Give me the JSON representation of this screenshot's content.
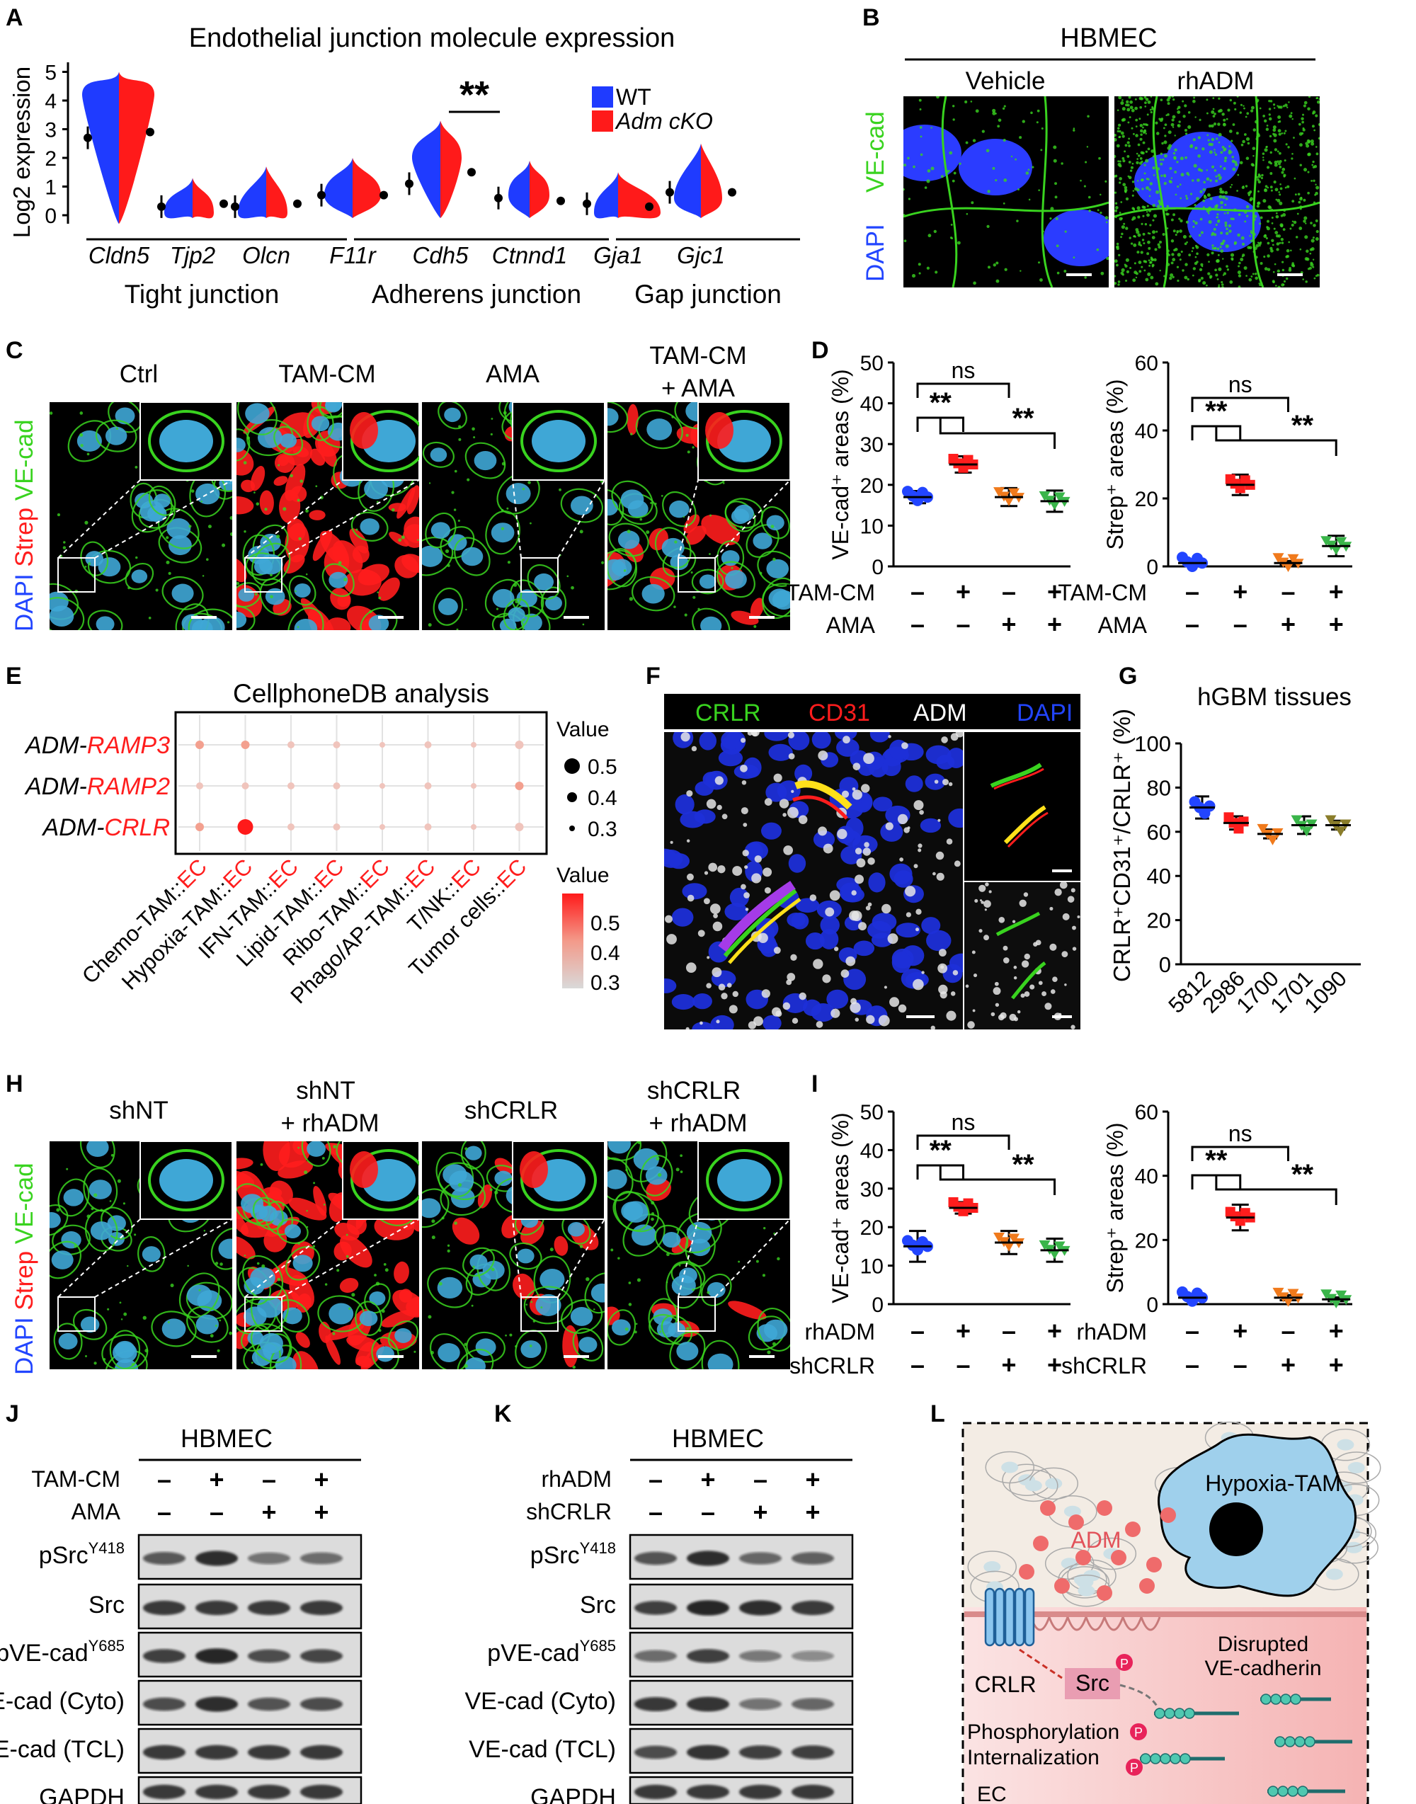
{
  "colors": {
    "wt": "#1f3bff",
    "cko": "#ff1a1a",
    "green": "#39d31f",
    "red": "#ff1d1d",
    "orange": "#f07a1c",
    "lime": "#3ab54a",
    "olive": "#8a7d2a",
    "blue": "#2245ff"
  },
  "A": {
    "letter": "A",
    "title": "Endothelial junction molecule expression",
    "ylabel": "Log2 expression",
    "legend": [
      "WT",
      "Adm cKO"
    ],
    "sig": "**",
    "genes": [
      "Cldn5",
      "Tjp2",
      "Olcn",
      "F11r",
      "Cdh5",
      "Ctnnd1",
      "Gja1",
      "Gjc1"
    ],
    "groups": [
      "Tight junction",
      "Adherens junction",
      "Gap junction"
    ],
    "yticks": [
      "0",
      "1",
      "2",
      "3",
      "4",
      "5"
    ]
  },
  "B": {
    "letter": "B",
    "title": "HBMEC",
    "conditions": [
      "Vehicle",
      "rhADM"
    ],
    "stain_a": "VE-cad",
    "stain_b": "DAPI"
  },
  "C": {
    "letter": "C",
    "conditions": [
      "Ctrl",
      "TAM-CM",
      "AMA",
      "TAM-CM",
      "+ AMA"
    ],
    "stain_a": "DAPI",
    "stain_b": "Strep",
    "stain_c": "VE-cad"
  },
  "D": {
    "letter": "D",
    "ns": "ns",
    "sig": "**",
    "row1": "TAM-CM",
    "row2": "AMA",
    "plus": "+",
    "minus": "–",
    "chart_data": [
      {
        "type": "scatter",
        "ylabel": "VE-cad⁺ areas (%)",
        "yticks": [
          "0",
          "10",
          "20",
          "30",
          "40",
          "50"
        ],
        "ylim": [
          0,
          50
        ],
        "categories": [
          "1",
          "2",
          "3",
          "4"
        ],
        "values": [
          17,
          25,
          17,
          16
        ],
        "errors": [
          1.5,
          2,
          2.2,
          2.6
        ]
      },
      {
        "type": "scatter",
        "ylabel": "Strep⁺ areas (%)",
        "yticks": [
          "0",
          "20",
          "40",
          "60"
        ],
        "ylim": [
          0,
          60
        ],
        "categories": [
          "1",
          "2",
          "3",
          "4"
        ],
        "values": [
          1,
          24,
          1,
          6
        ],
        "errors": [
          0.5,
          3,
          0.6,
          3
        ]
      }
    ]
  },
  "E": {
    "letter": "E",
    "title": "CellphoneDB analysis",
    "rows": [
      "ADM-RAMP3",
      "ADM-RAMP2",
      "ADM-CRLR"
    ],
    "row_prefix": "ADM-",
    "row_suffix": [
      "RAMP3",
      "RAMP2",
      "CRLR"
    ],
    "cols_prefix": [
      "Chemo-TAM::",
      "Hypoxia-TAM::",
      "IFN-TAM::",
      "Lipid-TAM::",
      "Ribo-TAM::",
      "Phago/AP-TAM::",
      "T/NK::",
      "Tumor cells::"
    ],
    "col_suffix": "EC",
    "size_legend_title": "Value",
    "size_legend": [
      "0.5",
      "0.4",
      "0.3"
    ],
    "color_legend_title": "Value",
    "color_legend": [
      "0.5",
      "0.4",
      "0.3"
    ]
  },
  "F": {
    "letter": "F",
    "stains": [
      "CRLR",
      "CD31",
      "ADM",
      "DAPI"
    ]
  },
  "G": {
    "letter": "G",
    "title": "hGBM tissues",
    "chart_data": {
      "type": "scatter",
      "ylabel": "CRLR⁺CD31⁺/CRLR⁺ (%)",
      "categories": [
        "5812",
        "2986",
        "1700",
        "1701",
        "1090"
      ],
      "values": [
        71,
        64,
        59,
        63,
        63
      ],
      "errors": [
        5,
        3,
        2,
        4,
        2
      ],
      "ylim": [
        0,
        100
      ],
      "yticks": [
        "0",
        "20",
        "40",
        "60",
        "80",
        "100"
      ]
    }
  },
  "H": {
    "letter": "H",
    "conditions": [
      "shNT",
      "shNT",
      "+ rhADM",
      "shCRLR",
      "shCRLR",
      "+ rhADM"
    ],
    "stain_a": "DAPI",
    "stain_b": "Strep",
    "stain_c": "VE-cad"
  },
  "I": {
    "letter": "I",
    "ns": "ns",
    "sig": "**",
    "row1": "rhADM",
    "row2": "shCRLR",
    "plus": "+",
    "minus": "–",
    "chart_data": [
      {
        "type": "scatter",
        "ylabel": "VE-cad⁺ areas (%)",
        "yticks": [
          "0",
          "10",
          "20",
          "30",
          "40",
          "50"
        ],
        "ylim": [
          0,
          50
        ],
        "categories": [
          "1",
          "2",
          "3",
          "4"
        ],
        "values": [
          15,
          25,
          16,
          14
        ],
        "errors": [
          4,
          1.5,
          3,
          3
        ]
      },
      {
        "type": "scatter",
        "ylabel": "Strep⁺ areas (%)",
        "yticks": [
          "0",
          "20",
          "40",
          "60"
        ],
        "ylim": [
          0,
          60
        ],
        "categories": [
          "1",
          "2",
          "3",
          "4"
        ],
        "values": [
          2,
          27,
          2,
          1.5
        ],
        "errors": [
          0.6,
          4,
          0.8,
          0.6
        ]
      }
    ]
  },
  "J": {
    "letter": "J",
    "title": "HBMEC",
    "row1": "TAM-CM",
    "row2": "AMA",
    "bands": [
      "pSrc",
      "Src",
      "pVE-cad",
      "VE-cad (Cyto)",
      "VE-cad (TCL)",
      "GAPDH"
    ],
    "sup": [
      "Y418",
      "",
      "Y685",
      "",
      "",
      ""
    ]
  },
  "K": {
    "letter": "K",
    "title": "HBMEC",
    "row1": "rhADM",
    "row2": "shCRLR",
    "bands": [
      "pSrc",
      "Src",
      "pVE-cad",
      "VE-cad (Cyto)",
      "VE-cad (TCL)",
      "GAPDH"
    ],
    "sup": [
      "Y418",
      "",
      "Y685",
      "",
      "",
      ""
    ]
  },
  "L": {
    "letter": "L",
    "tam": "Hypoxia-TAM",
    "adm": "ADM",
    "crlr": "CRLR",
    "src": "Src",
    "p": "P",
    "disrupted1": "Disrupted",
    "disrupted2": "VE-cadherin",
    "phos": "Phosphorylation",
    "intern": "Internalization",
    "ec": "EC"
  }
}
